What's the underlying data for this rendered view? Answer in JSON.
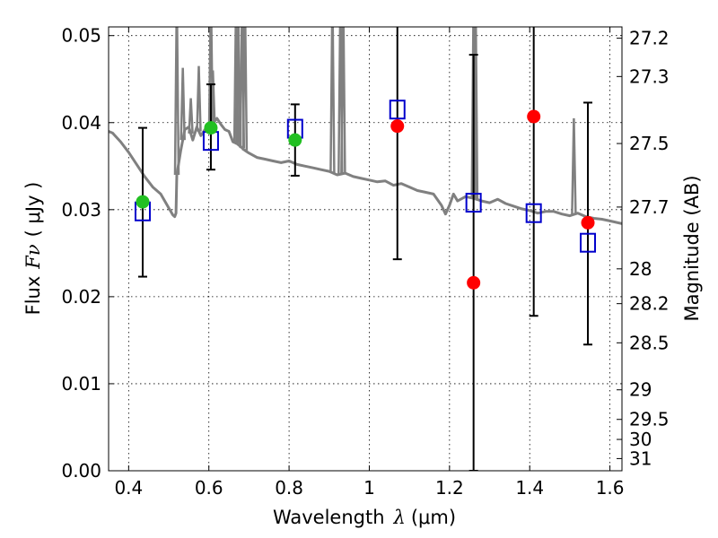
{
  "chart_data": {
    "type": "scatter",
    "xlabel": "Wavelength",
    "xlabel_symbol": "λ",
    "xlabel_unit": "(μm)",
    "ylabel": "Flux",
    "ylabel_symbol": "Fν",
    "ylabel_unit": "( μJy )",
    "y2label": "Magnitude (AB)",
    "xlim": [
      0.35,
      1.63
    ],
    "ylim": [
      0.0,
      0.051
    ],
    "grid": true,
    "x_ticks": [
      0.4,
      0.6,
      0.8,
      1.0,
      1.2,
      1.4,
      1.6
    ],
    "x_tick_labels": [
      "0.4",
      "0.6",
      "0.8",
      "1",
      "1.2",
      "1.4",
      "1.6"
    ],
    "y_ticks": [
      0.0,
      0.01,
      0.02,
      0.03,
      0.04,
      0.05
    ],
    "y_tick_labels": [
      "0.00",
      "0.01",
      "0.02",
      "0.03",
      "0.04",
      "0.05"
    ],
    "mag_ticks": [
      {
        "flux": 0.0497,
        "label": "27.2"
      },
      {
        "flux": 0.0453,
        "label": "27.3"
      },
      {
        "flux": 0.0376,
        "label": "27.5"
      },
      {
        "flux": 0.0303,
        "label": "27.7"
      },
      {
        "flux": 0.0232,
        "label": "28"
      },
      {
        "flux": 0.0192,
        "label": "28.2"
      },
      {
        "flux": 0.0147,
        "label": "28.5"
      },
      {
        "flux": 0.0093,
        "label": "29"
      },
      {
        "flux": 0.0059,
        "label": "29.5"
      },
      {
        "flux": 0.0036,
        "label": "30"
      },
      {
        "flux": 0.0014,
        "label": "31"
      }
    ],
    "series": [
      {
        "name": "model spectrum",
        "kind": "line",
        "color": "#808080",
        "x": [
          0.35,
          0.36,
          0.38,
          0.4,
          0.42,
          0.44,
          0.46,
          0.48,
          0.5,
          0.505,
          0.51,
          0.515,
          0.518,
          0.52,
          0.53,
          0.54,
          0.55,
          0.56,
          0.57,
          0.58,
          0.59,
          0.6,
          0.61,
          0.62,
          0.63,
          0.64,
          0.65,
          0.66,
          0.67,
          0.68,
          0.69,
          0.7,
          0.72,
          0.74,
          0.76,
          0.78,
          0.8,
          0.82,
          0.84,
          0.86,
          0.88,
          0.9,
          0.92,
          0.94,
          0.96,
          0.98,
          1.0,
          1.02,
          1.04,
          1.06,
          1.08,
          1.1,
          1.12,
          1.14,
          1.16,
          1.18,
          1.19,
          1.2,
          1.21,
          1.22,
          1.24,
          1.26,
          1.28,
          1.3,
          1.32,
          1.34,
          1.36,
          1.38,
          1.4,
          1.42,
          1.44,
          1.46,
          1.48,
          1.5,
          1.52,
          1.54,
          1.56,
          1.58,
          1.6,
          1.63
        ],
        "y": [
          0.039,
          0.0388,
          0.0378,
          0.0366,
          0.0352,
          0.0338,
          0.0326,
          0.0318,
          0.0302,
          0.0298,
          0.0294,
          0.0292,
          0.0296,
          0.034,
          0.0368,
          0.0392,
          0.0395,
          0.038,
          0.0395,
          0.0385,
          0.0392,
          0.039,
          0.0399,
          0.0405,
          0.0398,
          0.0392,
          0.039,
          0.0378,
          0.0376,
          0.0372,
          0.0368,
          0.0365,
          0.036,
          0.0358,
          0.0356,
          0.0354,
          0.0356,
          0.0352,
          0.035,
          0.0348,
          0.0346,
          0.0344,
          0.034,
          0.0342,
          0.0338,
          0.0336,
          0.0334,
          0.0332,
          0.0333,
          0.0328,
          0.033,
          0.0326,
          0.0322,
          0.032,
          0.0318,
          0.0305,
          0.0295,
          0.0305,
          0.0318,
          0.031,
          0.0315,
          0.0313,
          0.031,
          0.0308,
          0.0312,
          0.0307,
          0.0304,
          0.0301,
          0.0299,
          0.0296,
          0.0298,
          0.0298,
          0.0295,
          0.0293,
          0.0296,
          0.0292,
          0.029,
          0.0289,
          0.0287,
          0.0284
        ]
      },
      {
        "name": "model spectrum emission spikes",
        "kind": "spikes",
        "color": "#808080",
        "x": [
          0.52,
          0.535,
          0.555,
          0.575,
          0.605,
          0.61,
          0.668,
          0.673,
          0.683,
          0.69,
          0.908,
          0.928,
          0.935,
          1.26,
          1.265,
          1.51
        ],
        "y": [
          0.055,
          0.0463,
          0.0428,
          0.0465,
          0.055,
          0.046,
          0.055,
          0.055,
          0.055,
          0.055,
          0.055,
          0.055,
          0.055,
          0.055,
          0.055,
          0.0405
        ]
      },
      {
        "name": "observed (detections)",
        "kind": "points",
        "color": "#22c022",
        "x": [
          0.435,
          0.605,
          0.815
        ],
        "y": [
          0.0309,
          0.0394,
          0.038
        ]
      },
      {
        "name": "observed (other bands)",
        "kind": "points",
        "color": "#ff0000",
        "x": [
          1.07,
          1.26,
          1.41,
          1.545
        ],
        "y": [
          0.0396,
          0.0216,
          0.0407,
          0.0285
        ]
      },
      {
        "name": "model band flux",
        "kind": "squares",
        "color": "#0000cc",
        "x": [
          0.435,
          0.605,
          0.815,
          1.07,
          1.26,
          1.41,
          1.545
        ],
        "y": [
          0.0298,
          0.0379,
          0.0393,
          0.0415,
          0.0308,
          0.0296,
          0.0262
        ]
      },
      {
        "name": "error bars",
        "kind": "errorbars",
        "color": "#000000",
        "x": [
          0.435,
          0.605,
          0.815,
          1.07,
          1.26,
          1.41,
          1.545
        ],
        "ylow": [
          0.0223,
          0.0346,
          0.0339,
          0.0243,
          0.0,
          0.0178,
          0.0145
        ],
        "yhigh": [
          0.0394,
          0.0444,
          0.0421,
          0.055,
          0.0478,
          0.055,
          0.0423
        ]
      }
    ]
  }
}
